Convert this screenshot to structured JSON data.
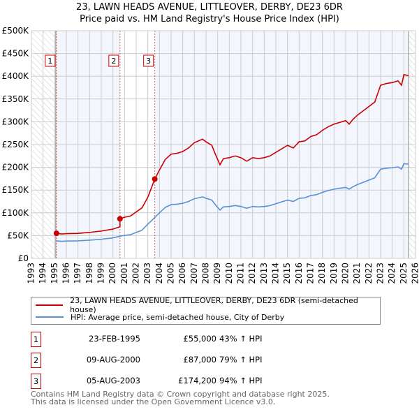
{
  "chart_data": {
    "type": "line",
    "title": "23, LAWN HEADS AVENUE, LITTLEOVER, DERBY, DE23 6DR",
    "subtitle": "Price paid vs. HM Land Registry's House Price Index (HPI)",
    "xlim": [
      1993,
      2026
    ],
    "ylim": [
      0,
      500000
    ],
    "y_ticks": [
      0,
      50000,
      100000,
      150000,
      200000,
      250000,
      300000,
      350000,
      400000,
      450000,
      500000
    ],
    "y_tick_labels": [
      "£0",
      "£50K",
      "£100K",
      "£150K",
      "£200K",
      "£250K",
      "£300K",
      "£350K",
      "£400K",
      "£450K",
      "£500K"
    ],
    "x_ticks": [
      1993,
      1994,
      1995,
      1996,
      1997,
      1998,
      1999,
      2000,
      2001,
      2002,
      2003,
      2004,
      2005,
      2006,
      2007,
      2008,
      2009,
      2010,
      2011,
      2012,
      2013,
      2014,
      2015,
      2016,
      2017,
      2018,
      2019,
      2020,
      2021,
      2022,
      2023,
      2024,
      2025,
      2026
    ],
    "grid": true,
    "data_end": 2025.4,
    "hpi_series": {
      "name": "HPI: Average price, semi-detached house, City of Derby",
      "color": "#5b8fd6",
      "x": [
        1995.15,
        1995.6,
        1996,
        1997,
        1998,
        1999,
        2000,
        2000.6,
        2001,
        2001.5,
        2002,
        2002.5,
        2003,
        2003.6,
        2004,
        2004.5,
        2005,
        2005.5,
        2006,
        2006.5,
        2007,
        2007.7,
        2008,
        2008.5,
        2008.8,
        2009.2,
        2009.5,
        2010,
        2010.5,
        2011,
        2011.5,
        2012,
        2012.5,
        2013,
        2013.5,
        2014,
        2014.5,
        2015,
        2015.5,
        2016,
        2016.5,
        2017,
        2017.5,
        2018,
        2018.5,
        2019,
        2019.5,
        2020,
        2020.3,
        2020.6,
        2021,
        2021.5,
        2022,
        2022.5,
        2023,
        2023.5,
        2024,
        2024.5,
        2024.8,
        2025,
        2025.4
      ],
      "y": [
        38500,
        37500,
        38000,
        38500,
        40000,
        42000,
        45000,
        48600,
        50500,
        52000,
        57000,
        62000,
        75000,
        89800,
        100000,
        112000,
        118000,
        119000,
        121000,
        125000,
        131000,
        135000,
        132000,
        128000,
        118000,
        106000,
        113000,
        114000,
        116000,
        114000,
        110000,
        114000,
        113000,
        114000,
        116000,
        120000,
        124000,
        128000,
        125000,
        132000,
        133000,
        138000,
        140000,
        145000,
        149000,
        152000,
        154000,
        156000,
        152000,
        157000,
        162000,
        167000,
        172000,
        177000,
        196000,
        198000,
        199000,
        201000,
        196000,
        208000,
        207000
      ]
    },
    "price_series": {
      "name": "23, LAWN HEADS AVENUE, LITTLEOVER, DERBY, DE23 6DR (semi-detached house)",
      "color": "#cc0000",
      "note_multipliers": [
        1.43,
        1.79,
        1.94
      ]
    },
    "sales": [
      {
        "num": "1",
        "x": 1995.15,
        "price": 55000,
        "date": "23-FEB-1995",
        "price_label": "£55,000",
        "hpi_label": "43% ↑ HPI"
      },
      {
        "num": "2",
        "x": 2000.61,
        "price": 87000,
        "date": "09-AUG-2000",
        "price_label": "£87,000",
        "hpi_label": "79% ↑ HPI"
      },
      {
        "num": "3",
        "x": 2003.6,
        "price": 174200,
        "date": "05-AUG-2003",
        "price_label": "£174,200",
        "hpi_label": "94% ↑ HPI"
      }
    ]
  },
  "legend": {
    "property": "23, LAWN HEADS AVENUE, LITTLEOVER, DERBY, DE23 6DR (semi-detached house)",
    "hpi": "HPI: Average price, semi-detached house, City of Derby"
  },
  "footer": {
    "line1": "Contains HM Land Registry data © Crown copyright and database right 2025.",
    "line2": "This data is licensed under the Open Government Licence v3.0."
  }
}
